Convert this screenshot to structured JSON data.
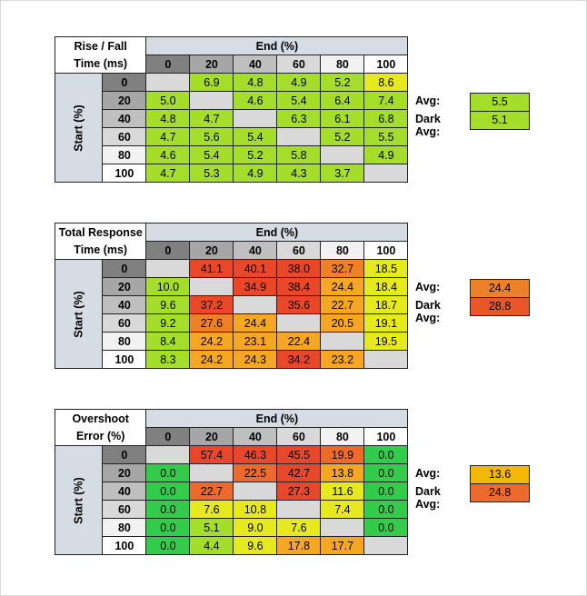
{
  "colors": {
    "header_fill": "#d6dce4",
    "diagonal_fill": "#d9d9d9",
    "scale": [
      "#33cc4a",
      "#a4de2b",
      "#e6e91e",
      "#f5a623",
      "#ee8028",
      "#e8472a"
    ]
  },
  "tables": [
    {
      "title_line1": "Rise / Fall",
      "title_line2": "Time (ms)",
      "end_label": "End (%)",
      "start_label": "Start (%)",
      "columns": [
        "0",
        "20",
        "40",
        "60",
        "80",
        "100"
      ],
      "rows": [
        {
          "label": "0",
          "cells": [
            "",
            "6.9",
            "4.8",
            "4.9",
            "5.2",
            "8.6"
          ]
        },
        {
          "label": "20",
          "cells": [
            "5.0",
            "",
            "4.6",
            "5.4",
            "6.4",
            "7.4"
          ]
        },
        {
          "label": "40",
          "cells": [
            "4.8",
            "4.7",
            "",
            "6.3",
            "6.1",
            "6.8"
          ]
        },
        {
          "label": "60",
          "cells": [
            "4.7",
            "5.6",
            "5.4",
            "",
            "5.2",
            "5.5"
          ]
        },
        {
          "label": "80",
          "cells": [
            "4.6",
            "5.4",
            "5.2",
            "5.8",
            "",
            "4.9"
          ]
        },
        {
          "label": "100",
          "cells": [
            "4.7",
            "5.3",
            "4.9",
            "4.3",
            "3.7",
            ""
          ]
        }
      ],
      "avg_label": "Avg:",
      "avg_value": "5.5",
      "dark_avg_label": "Dark Avg:",
      "dark_avg_value": "5.1"
    },
    {
      "title_line1": "Total Response",
      "title_line2": "Time (ms)",
      "end_label": "End (%)",
      "start_label": "Start (%)",
      "columns": [
        "0",
        "20",
        "40",
        "60",
        "80",
        "100"
      ],
      "rows": [
        {
          "label": "0",
          "cells": [
            "",
            "41.1",
            "40.1",
            "38.0",
            "32.7",
            "18.5"
          ]
        },
        {
          "label": "20",
          "cells": [
            "10.0",
            "",
            "34.9",
            "38.4",
            "24.4",
            "18.4"
          ]
        },
        {
          "label": "40",
          "cells": [
            "9.6",
            "37.2",
            "",
            "35.6",
            "22.7",
            "18.7"
          ]
        },
        {
          "label": "60",
          "cells": [
            "9.2",
            "27.6",
            "24.4",
            "",
            "20.5",
            "19.1"
          ]
        },
        {
          "label": "80",
          "cells": [
            "8.4",
            "24.2",
            "23.1",
            "22.4",
            "",
            "19.5"
          ]
        },
        {
          "label": "100",
          "cells": [
            "8.3",
            "24.2",
            "24.3",
            "34.2",
            "23.2",
            ""
          ]
        }
      ],
      "avg_label": "Avg:",
      "avg_value": "24.4",
      "dark_avg_label": "Dark Avg:",
      "dark_avg_value": "28.8"
    },
    {
      "title_line1": "Overshoot",
      "title_line2": "Error (%)",
      "end_label": "End (%)",
      "start_label": "Start (%)",
      "columns": [
        "0",
        "20",
        "40",
        "60",
        "80",
        "100"
      ],
      "rows": [
        {
          "label": "0",
          "cells": [
            "",
            "57.4",
            "46.3",
            "45.5",
            "19.9",
            "0.0"
          ]
        },
        {
          "label": "20",
          "cells": [
            "0.0",
            "",
            "22.5",
            "42.7",
            "13.8",
            "0.0"
          ]
        },
        {
          "label": "40",
          "cells": [
            "0.0",
            "22.7",
            "",
            "27.3",
            "11.6",
            "0.0"
          ]
        },
        {
          "label": "60",
          "cells": [
            "0.0",
            "7.6",
            "10.8",
            "",
            "7.4",
            "0.0"
          ]
        },
        {
          "label": "80",
          "cells": [
            "0.0",
            "5.1",
            "9.0",
            "7.6",
            "",
            "0.0"
          ]
        },
        {
          "label": "100",
          "cells": [
            "0.0",
            "4.4",
            "9.6",
            "17.8",
            "17.7",
            ""
          ]
        }
      ],
      "avg_label": "Avg:",
      "avg_value": "13.6",
      "dark_avg_label": "Dark Avg:",
      "dark_avg_value": "24.8"
    }
  ]
}
